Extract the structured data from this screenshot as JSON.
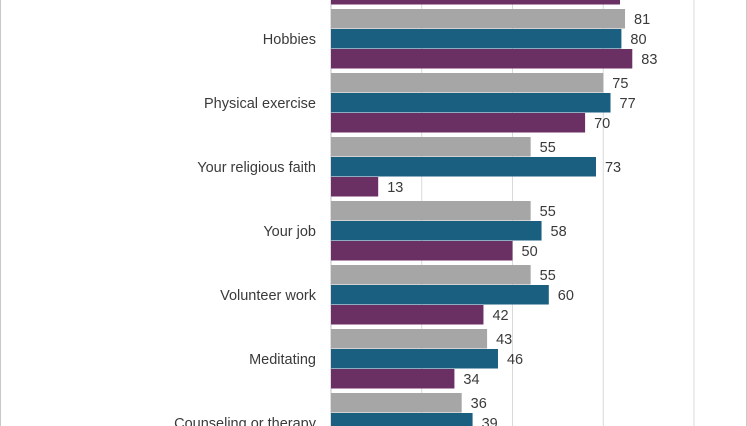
{
  "chart_data": {
    "type": "bar",
    "orientation": "horizontal",
    "categories": [
      "",
      "Hobbies",
      "Physical exercise",
      "Your religious faith",
      "Your job",
      "Volunteer work",
      "Meditating",
      "Counseling or therapy"
    ],
    "series": [
      {
        "color": "#a6a6a6",
        "values": [
          null,
          81,
          75,
          55,
          55,
          55,
          43,
          36
        ]
      },
      {
        "color": "#1a5e80",
        "values": [
          null,
          80,
          77,
          73,
          58,
          60,
          46,
          39
        ]
      },
      {
        "color": "#6a2f63",
        "values": [
          null,
          83,
          70,
          13,
          50,
          42,
          34,
          null
        ]
      }
    ],
    "xlim": [
      0,
      100
    ],
    "grid": true,
    "legend": "none"
  }
}
